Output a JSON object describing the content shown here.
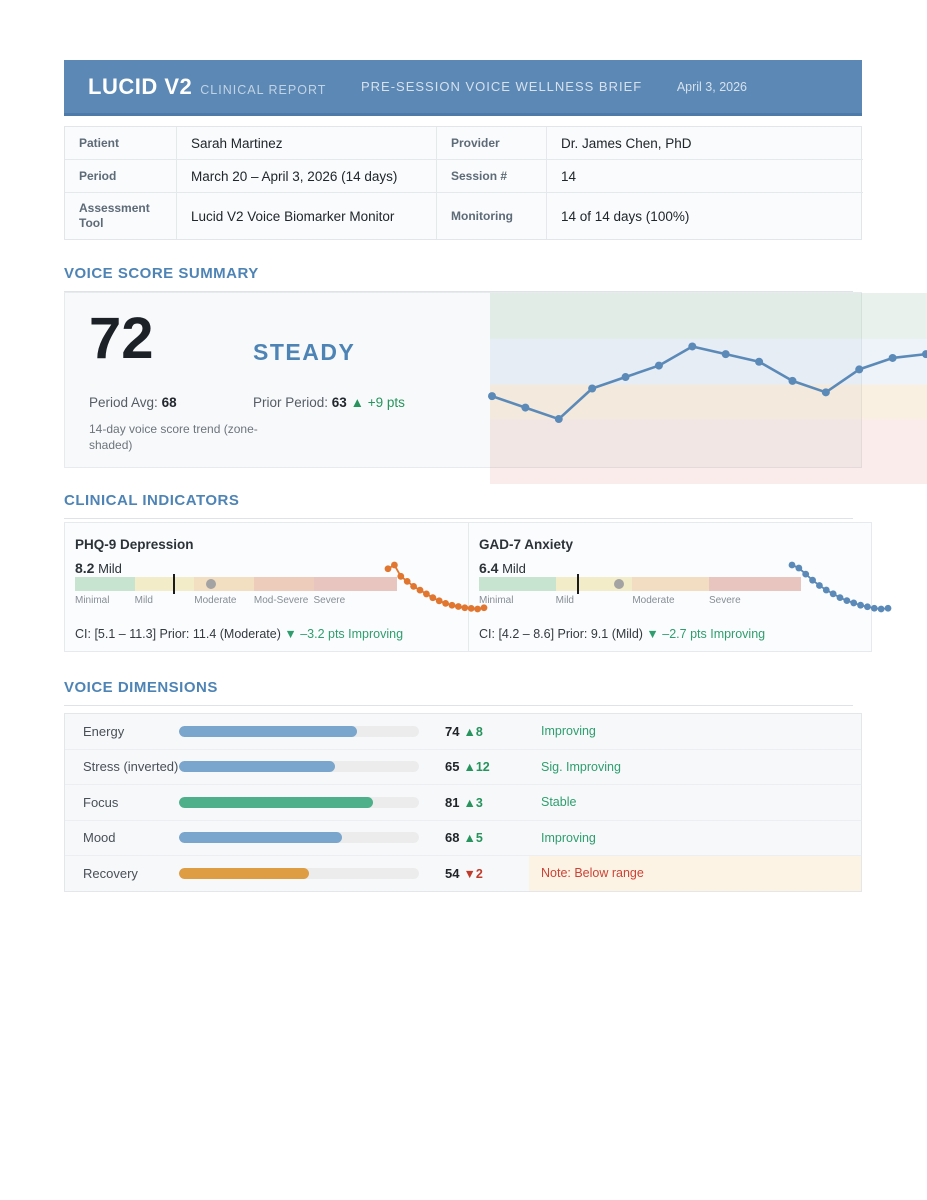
{
  "header": {
    "brand": "LUCID V2",
    "brand_sub": "CLINICAL REPORT",
    "center_title": "PRE-SESSION VOICE WELLNESS BRIEF",
    "date": "April 3, 2026"
  },
  "patient_info": {
    "rows": [
      {
        "label": "Patient",
        "value": "Sarah Martinez",
        "label2": "Provider",
        "value2": "Dr. James Chen, PhD"
      },
      {
        "label": "Period",
        "value": "March 20 – April 3, 2026 (14 days)",
        "label2": "Session #",
        "value2": "14"
      },
      {
        "label": "Assessment Tool",
        "value": "Lucid V2 Voice Biomarker Monitor",
        "label2": "Monitoring",
        "value2": "14 of 14 days (100%)"
      }
    ]
  },
  "summary": {
    "heading": "VOICE SCORE SUMMARY",
    "score": "72",
    "status": "STEADY",
    "period_avg_label": "Period Avg: ",
    "period_avg": "68",
    "prior_label": "Prior Period: ",
    "prior_value": "63",
    "prior_delta": "▲ +9 pts",
    "caption": "14-day voice score trend (zone-shaded)"
  },
  "indicators": {
    "heading": "CLINICAL INDICATORS",
    "cards": [
      {
        "title": "PHQ-9 Depression",
        "score": "8.2",
        "severity": "Mild",
        "scale_max": 27,
        "value": 8.2,
        "prior": 11.4,
        "zones": [
          {
            "label": "Minimal",
            "to": 5,
            "color": "#c7e4d0"
          },
          {
            "label": "Mild",
            "to": 10,
            "color": "#f3ecc8"
          },
          {
            "label": "Moderate",
            "to": 15,
            "color": "#f2dfc2"
          },
          {
            "label": "Mod-Severe",
            "to": 20,
            "color": "#edccbb"
          },
          {
            "label": "Severe",
            "to": 27,
            "color": "#e9c5bf"
          }
        ],
        "ci_text": "CI: [5.1 – 11.3] Prior: 11.4 (Moderate) ",
        "change_text": "▼ –3.2 pts Improving",
        "spark_color": "#e0762f"
      },
      {
        "title": "GAD-7 Anxiety",
        "score": "6.4",
        "severity": "Mild",
        "scale_max": 21,
        "value": 6.4,
        "prior": 9.1,
        "zones": [
          {
            "label": "Minimal",
            "to": 5,
            "color": "#c7e4d0"
          },
          {
            "label": "Mild",
            "to": 10,
            "color": "#f3ecc8"
          },
          {
            "label": "Moderate",
            "to": 15,
            "color": "#f2dcc2"
          },
          {
            "label": "Severe",
            "to": 21,
            "color": "#e9c5bf"
          }
        ],
        "ci_text": "CI: [4.2 – 8.6] Prior: 9.1 (Mild) ",
        "change_text": "▼ –2.7 pts Improving",
        "spark_color": "#5b8ab8"
      }
    ]
  },
  "dimensions": {
    "heading": "VOICE DIMENSIONS",
    "rows": [
      {
        "label": "Energy",
        "value": 74,
        "delta": "▲8",
        "direction": "up",
        "status": "Improving",
        "bar_color": "#7aa6cd",
        "note": false
      },
      {
        "label": "Stress (inverted)",
        "value": 65,
        "delta": "▲12",
        "direction": "up",
        "status": "Sig. Improving",
        "bar_color": "#7aa6cd",
        "note": false
      },
      {
        "label": "Focus",
        "value": 81,
        "delta": "▲3",
        "direction": "up",
        "status": "Stable",
        "bar_color": "#4db08a",
        "note": false
      },
      {
        "label": "Mood",
        "value": 68,
        "delta": "▲5",
        "direction": "up",
        "status": "Improving",
        "bar_color": "#7aa6cd",
        "note": false
      },
      {
        "label": "Recovery",
        "value": 54,
        "delta": "▼2",
        "direction": "down",
        "status": "Note: Below range",
        "bar_color": "#de9d43",
        "note": true
      }
    ]
  },
  "chart_data": [
    {
      "id": "voice_trend",
      "type": "line",
      "title": "14-day voice score trend (zone-shaded)",
      "x_days": [
        1,
        2,
        3,
        4,
        5,
        6,
        7,
        8,
        9,
        10,
        11,
        12,
        13,
        14
      ],
      "values": [
        63,
        60,
        57,
        65,
        68,
        71,
        76,
        74,
        72,
        67,
        64,
        70,
        73,
        74
      ],
      "ylim": [
        40,
        90
      ],
      "line_color": "#5b8ab8",
      "zones": [
        {
          "from": 78,
          "to": 90,
          "color": "rgba(111,168,130,0.16)"
        },
        {
          "from": 66,
          "to": 78,
          "color": "rgba(115,160,205,0.13)"
        },
        {
          "from": 57,
          "to": 66,
          "color": "rgba(215,130,20,0.12)"
        },
        {
          "from": 40,
          "to": 57,
          "color": "rgba(195,65,45,0.10)"
        }
      ]
    },
    {
      "id": "phq9_trend",
      "type": "line",
      "values": [
        11.2,
        11.5,
        10.6,
        10.2,
        9.8,
        9.5,
        9.2,
        8.9,
        8.65,
        8.45,
        8.3,
        8.2,
        8.1,
        8.05,
        8.0,
        8.1
      ]
    },
    {
      "id": "gad7_trend",
      "type": "line",
      "values": [
        9.3,
        9.1,
        8.7,
        8.3,
        7.95,
        7.65,
        7.4,
        7.15,
        6.95,
        6.8,
        6.65,
        6.55,
        6.45,
        6.4,
        6.45
      ]
    }
  ]
}
